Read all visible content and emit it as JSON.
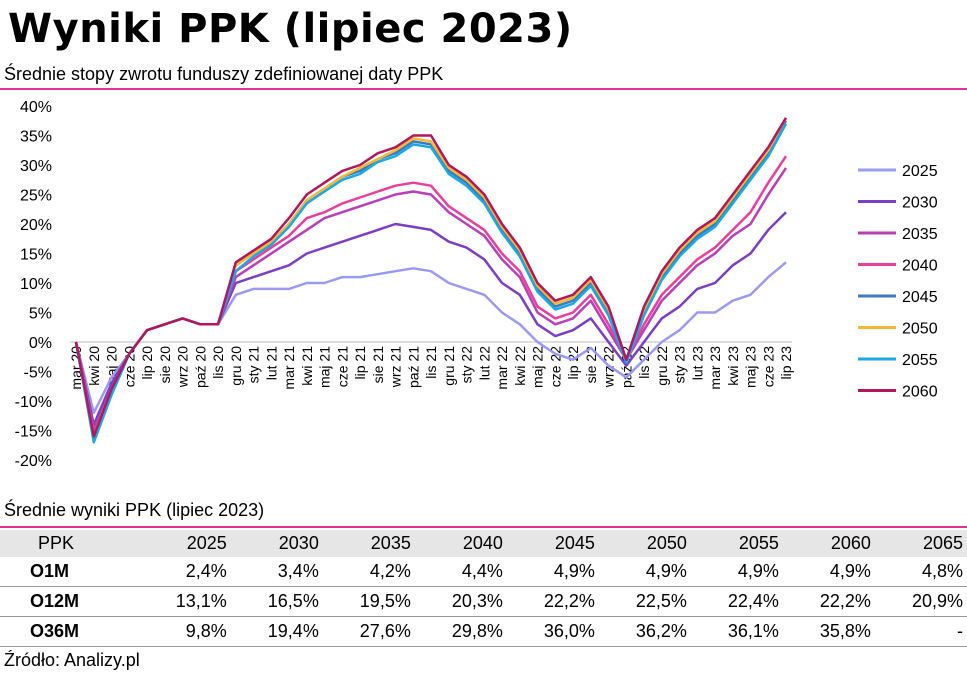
{
  "page": {
    "title": "Wyniki PPK (lipiec 2023)",
    "subtitle": "Średnie stopy zwrotu funduszy zdefiniowanej daty PPK",
    "table_caption": "Średnie wyniki PPK (lipiec 2023)",
    "source": "Źródło: Analizy.pl",
    "accent_color": "#e0308a"
  },
  "table": {
    "header_label": "PPK",
    "columns": [
      "2025",
      "2030",
      "2035",
      "2040",
      "2045",
      "2050",
      "2055",
      "2060",
      "2065"
    ],
    "rows": [
      {
        "label": "O1M",
        "values": [
          "2,4%",
          "3,4%",
          "4,2%",
          "4,4%",
          "4,9%",
          "4,9%",
          "4,9%",
          "4,9%",
          "4,8%"
        ]
      },
      {
        "label": "O12M",
        "values": [
          "13,1%",
          "16,5%",
          "19,5%",
          "20,3%",
          "22,2%",
          "22,5%",
          "22,4%",
          "22,2%",
          "20,9%"
        ]
      },
      {
        "label": "O36M",
        "values": [
          "9,8%",
          "19,4%",
          "27,6%",
          "29,8%",
          "36,0%",
          "36,2%",
          "36,1%",
          "35,8%",
          "-"
        ]
      }
    ]
  },
  "chart_data": {
    "type": "line",
    "ylim": [
      -20,
      40
    ],
    "yticks": [
      "-20%",
      "-15%",
      "-10%",
      "-5%",
      "0%",
      "5%",
      "10%",
      "15%",
      "20%",
      "25%",
      "30%",
      "35%",
      "40%"
    ],
    "xticks": [
      "mar 20",
      "kwi 20",
      "maj 20",
      "cze 20",
      "lip 20",
      "sie 20",
      "wrz 20",
      "paź 20",
      "lis 20",
      "gru 20",
      "sty 21",
      "lut 21",
      "mar 21",
      "kwi 21",
      "maj 21",
      "cze 21",
      "lip 21",
      "sie 21",
      "wrz 21",
      "paź 21",
      "lis 21",
      "gru 21",
      "sty 22",
      "lut 22",
      "mar 22",
      "kwi 22",
      "maj 22",
      "cze 22",
      "lip 22",
      "sie 22",
      "wrz 22",
      "paź 22",
      "lis 22",
      "gru 22",
      "sty 23",
      "lut 23",
      "mar 23",
      "kwi 23",
      "maj 23",
      "cze 23",
      "lip 23"
    ],
    "grid": false,
    "legend": "right",
    "series": [
      {
        "name": "2025",
        "color": "#9a9af5",
        "values": [
          0,
          -12,
          -6,
          -2,
          2,
          3,
          4,
          3,
          3,
          8,
          9,
          9,
          9,
          10,
          10,
          11,
          11,
          11.5,
          12,
          12.5,
          12,
          10,
          9,
          8,
          5,
          3,
          0,
          -2,
          -3,
          -1,
          -4,
          -6,
          -3,
          0,
          2,
          5,
          5,
          7,
          8,
          11,
          13.5
        ]
      },
      {
        "name": "2030",
        "color": "#7b3ec4",
        "values": [
          0,
          -14,
          -7,
          -2,
          2,
          3,
          4,
          3,
          3,
          10,
          11,
          12,
          13,
          15,
          16,
          17,
          18,
          19,
          20,
          19.5,
          19,
          17,
          16,
          14,
          10,
          8,
          3,
          1,
          2,
          4,
          0,
          -4,
          0,
          4,
          6,
          9,
          10,
          13,
          15,
          19,
          22
        ]
      },
      {
        "name": "2035",
        "color": "#b83fb8",
        "values": [
          0,
          -15,
          -8,
          -2,
          2,
          3,
          4,
          3,
          3,
          11,
          13,
          15,
          17,
          19,
          21,
          22,
          23,
          24,
          25,
          25.5,
          25,
          22,
          20,
          18,
          14,
          11,
          5,
          3,
          4,
          7,
          2,
          -3,
          2,
          7,
          10,
          13,
          15,
          18,
          20,
          25,
          29.5
        ]
      },
      {
        "name": "2040",
        "color": "#e93f9a",
        "values": [
          0,
          -15.5,
          -8,
          -2,
          2,
          3,
          4,
          3,
          3,
          12,
          14,
          16,
          18,
          21,
          22,
          23.5,
          24.5,
          25.5,
          26.5,
          27,
          26.5,
          23,
          21,
          19,
          15,
          12,
          6,
          4,
          5,
          8,
          3,
          -3,
          3,
          8,
          11,
          14,
          16,
          19,
          22,
          27,
          31.5
        ]
      },
      {
        "name": "2045",
        "color": "#3a7abf",
        "values": [
          0,
          -16,
          -8,
          -2,
          2,
          3,
          4,
          3,
          3,
          13,
          15,
          17,
          20,
          24,
          26,
          28,
          29,
          31,
          32,
          34,
          33.5,
          29,
          27,
          24,
          19,
          15,
          9,
          6,
          7,
          10,
          5,
          -3,
          5,
          11,
          15,
          18,
          20,
          24,
          28,
          32,
          37.5
        ]
      },
      {
        "name": "2050",
        "color": "#f5b830",
        "values": [
          0,
          -16,
          -8,
          -2,
          2,
          3,
          4,
          3,
          3,
          13,
          15,
          17,
          20,
          24,
          26,
          28,
          29.5,
          31,
          32.5,
          34.5,
          34,
          29.5,
          27.5,
          24.5,
          19.5,
          15.5,
          9.5,
          6.5,
          7.5,
          10.5,
          5.5,
          -3,
          5.5,
          11.5,
          15.5,
          18.5,
          20.5,
          24.5,
          28.5,
          32.5,
          38
        ]
      },
      {
        "name": "2055",
        "color": "#1aa8e6",
        "values": [
          0,
          -17,
          -9,
          -2,
          2,
          3,
          4,
          3,
          3,
          12,
          14.5,
          16.5,
          19.5,
          23.5,
          25.5,
          27.5,
          28.5,
          30.5,
          31.5,
          33.5,
          33,
          28.5,
          26.5,
          23.5,
          18.5,
          14.5,
          8.5,
          5.5,
          6.5,
          9.5,
          4.5,
          -3.5,
          4.5,
          10.5,
          14.5,
          17.5,
          19.5,
          23.5,
          27.5,
          31.5,
          37
        ]
      },
      {
        "name": "2060",
        "color": "#b0175e",
        "values": [
          0,
          -16,
          -8,
          -2,
          2,
          3,
          4,
          3,
          3,
          13.5,
          15.5,
          17.5,
          21,
          25,
          27,
          29,
          30,
          32,
          33,
          35,
          35,
          30,
          28,
          25,
          20,
          16,
          10,
          7,
          8,
          11,
          6,
          -3,
          6,
          12,
          16,
          19,
          21,
          25,
          29,
          33,
          38
        ]
      }
    ]
  }
}
